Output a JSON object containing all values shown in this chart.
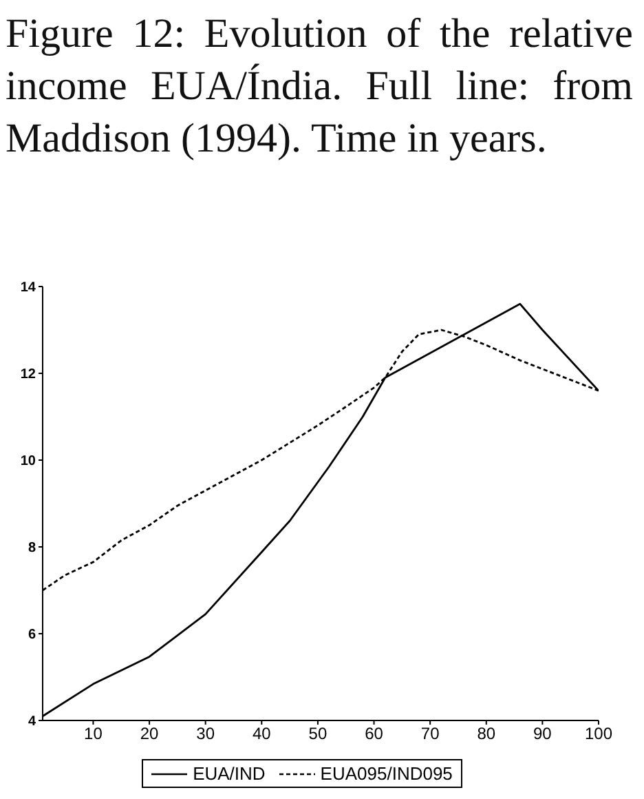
{
  "chart_data": {
    "type": "line",
    "title": "Figure 12: Evolution of the relative income EUA/Índia. Full line: from Maddison (1994). Time in years.",
    "xlim": [
      1,
      100
    ],
    "xticks": [
      10,
      20,
      30,
      40,
      50,
      60,
      70,
      80,
      90,
      100
    ],
    "ylim": [
      4,
      14
    ],
    "yticks": [
      4,
      6,
      8,
      10,
      12,
      14
    ],
    "grid": false,
    "legend": "bottom",
    "marker": "none",
    "series": [
      {
        "name": "EUA/IND",
        "color": "#000000",
        "line_style": "solid",
        "x": [
          1,
          10,
          20,
          30,
          40,
          45,
          52,
          58,
          62,
          86,
          90,
          100
        ],
        "values": [
          4.1,
          4.84,
          5.47,
          6.45,
          7.88,
          8.6,
          9.85,
          11.0,
          11.9,
          13.6,
          13.0,
          11.6
        ]
      },
      {
        "name": "EUA095/IND095",
        "color": "#000000",
        "line_style": "dashed",
        "x": [
          1,
          5,
          10,
          15,
          20,
          25,
          30,
          35,
          40,
          45,
          50,
          55,
          60,
          62,
          65,
          68,
          72,
          76,
          80,
          86,
          93,
          100
        ],
        "values": [
          7.0,
          7.35,
          7.65,
          8.15,
          8.5,
          8.95,
          9.3,
          9.65,
          10.0,
          10.4,
          10.8,
          11.23,
          11.67,
          11.9,
          12.5,
          12.9,
          13.0,
          12.85,
          12.65,
          12.3,
          11.95,
          11.6
        ]
      }
    ]
  }
}
